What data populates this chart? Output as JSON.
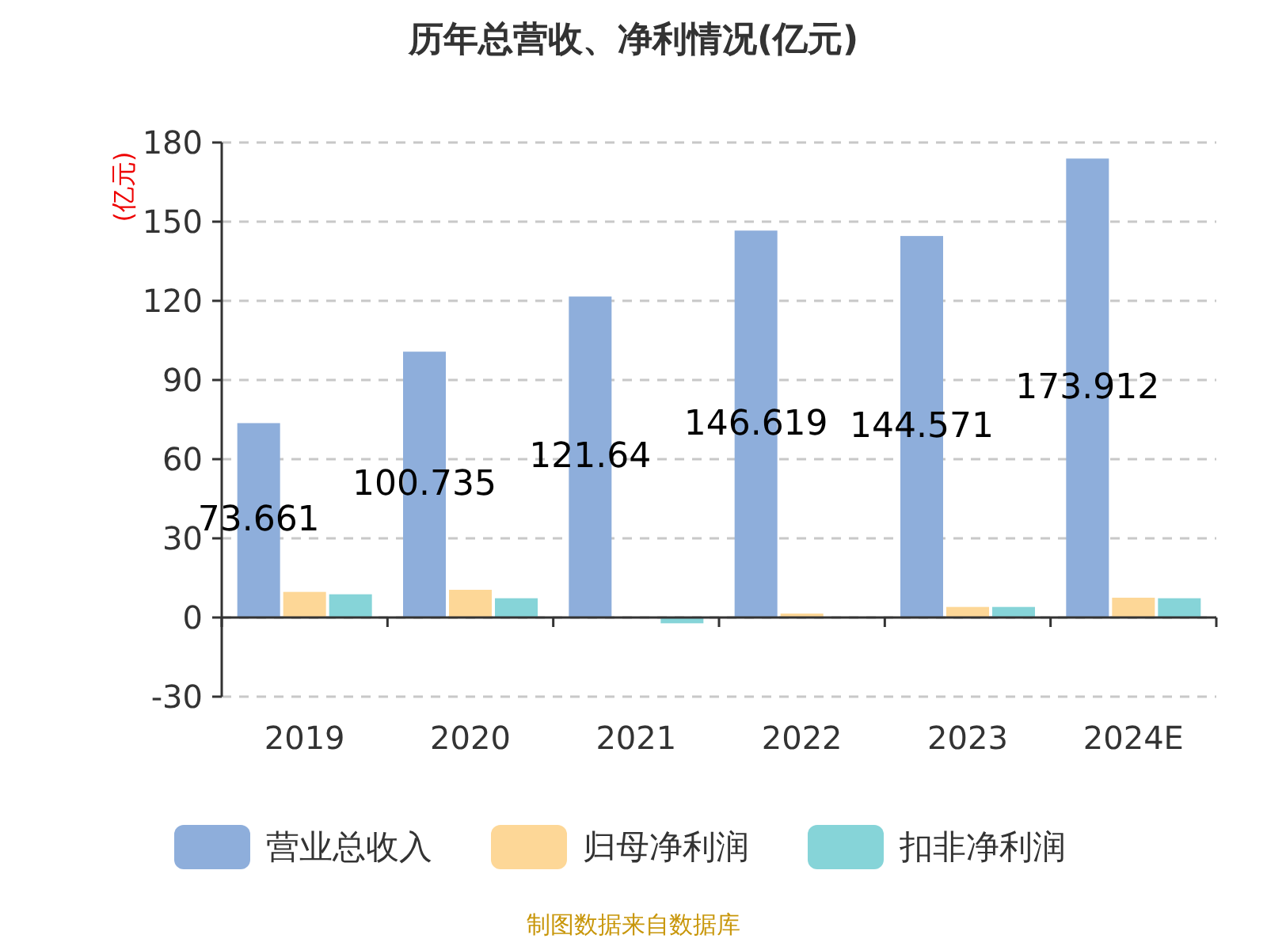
{
  "chart_data": {
    "type": "bar",
    "title": "历年总营收、净利情况(亿元)",
    "ylabel": "(亿元)",
    "categories": [
      "2019",
      "2020",
      "2021",
      "2022",
      "2023",
      "2024E"
    ],
    "series": [
      {
        "name": "营业总收入",
        "color": "#8eaedb",
        "values": [
          73.661,
          100.735,
          121.64,
          146.619,
          144.571,
          173.912
        ],
        "value_labels": [
          "73.661",
          "100.735",
          "121.64",
          "146.619",
          "144.571",
          "173.912"
        ]
      },
      {
        "name": "归母净利润",
        "color": "#fdd797",
        "values": [
          9.7,
          10.5,
          null,
          1.5,
          4.0,
          7.5
        ]
      },
      {
        "name": "扣非净利润",
        "color": "#86d4d8",
        "values": [
          8.8,
          7.3,
          -2.2,
          null,
          4.0,
          7.3
        ]
      }
    ],
    "ylim": [
      -30,
      180
    ],
    "yticks": [
      -30,
      0,
      30,
      60,
      90,
      120,
      150,
      180
    ],
    "grid": "y",
    "legend": "bottom",
    "annotations": [
      "制图数据来自数据库"
    ]
  }
}
